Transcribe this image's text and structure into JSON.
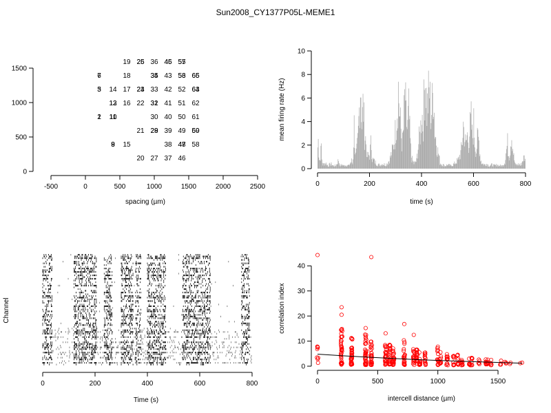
{
  "page": {
    "title": "Sun2008_CY1377P05L-MEME1"
  },
  "chart_data": [
    {
      "type": "scatter",
      "subtype": "electrode-layout",
      "xlabel": "spacing (µm)",
      "ylabel": "",
      "xlim": [
        -500,
        2500
      ],
      "ylim": [
        0,
        1500
      ],
      "xticks": [
        -500,
        0,
        500,
        1000,
        1500,
        2000,
        2500
      ],
      "yticks": [
        0,
        500,
        1000,
        1500
      ],
      "labels": [
        {
          "t": "19",
          "x": 600,
          "y": 1600
        },
        {
          "t": "25",
          "x": 800,
          "y": 1600
        },
        {
          "t": "26",
          "x": 800,
          "y": 1600
        },
        {
          "t": "36",
          "x": 1000,
          "y": 1600
        },
        {
          "t": "45",
          "x": 1200,
          "y": 1600
        },
        {
          "t": "46",
          "x": 1200,
          "y": 1600
        },
        {
          "t": "55",
          "x": 1400,
          "y": 1600
        },
        {
          "t": "57",
          "x": 1400,
          "y": 1600
        },
        {
          "t": "6",
          "x": 200,
          "y": 1400
        },
        {
          "t": "7",
          "x": 200,
          "y": 1400
        },
        {
          "t": "18",
          "x": 600,
          "y": 1400
        },
        {
          "t": "34",
          "x": 1000,
          "y": 1400
        },
        {
          "t": "35",
          "x": 1000,
          "y": 1400
        },
        {
          "t": "43",
          "x": 1200,
          "y": 1400
        },
        {
          "t": "53",
          "x": 1400,
          "y": 1400
        },
        {
          "t": "56",
          "x": 1400,
          "y": 1400
        },
        {
          "t": "65",
          "x": 1600,
          "y": 1400
        },
        {
          "t": "66",
          "x": 1600,
          "y": 1400
        },
        {
          "t": "3",
          "x": 200,
          "y": 1200
        },
        {
          "t": "5",
          "x": 200,
          "y": 1200
        },
        {
          "t": "14",
          "x": 400,
          "y": 1200
        },
        {
          "t": "17",
          "x": 600,
          "y": 1200
        },
        {
          "t": "23",
          "x": 800,
          "y": 1200
        },
        {
          "t": "24",
          "x": 800,
          "y": 1200
        },
        {
          "t": "33",
          "x": 1000,
          "y": 1200
        },
        {
          "t": "42",
          "x": 1200,
          "y": 1200
        },
        {
          "t": "52",
          "x": 1400,
          "y": 1200
        },
        {
          "t": "63",
          "x": 1600,
          "y": 1200
        },
        {
          "t": "64",
          "x": 1600,
          "y": 1200
        },
        {
          "t": "12",
          "x": 400,
          "y": 1000
        },
        {
          "t": "13",
          "x": 400,
          "y": 1000
        },
        {
          "t": "16",
          "x": 600,
          "y": 1000
        },
        {
          "t": "22",
          "x": 800,
          "y": 1000
        },
        {
          "t": "31",
          "x": 1000,
          "y": 1000
        },
        {
          "t": "32",
          "x": 1000,
          "y": 1000
        },
        {
          "t": "41",
          "x": 1200,
          "y": 1000
        },
        {
          "t": "51",
          "x": 1400,
          "y": 1000
        },
        {
          "t": "62",
          "x": 1600,
          "y": 1000
        },
        {
          "t": "1",
          "x": 200,
          "y": 800
        },
        {
          "t": "2",
          "x": 200,
          "y": 800
        },
        {
          "t": "10",
          "x": 400,
          "y": 800
        },
        {
          "t": "11",
          "x": 400,
          "y": 800
        },
        {
          "t": "30",
          "x": 1000,
          "y": 800
        },
        {
          "t": "40",
          "x": 1200,
          "y": 800
        },
        {
          "t": "50",
          "x": 1400,
          "y": 800
        },
        {
          "t": "61",
          "x": 1600,
          "y": 800
        },
        {
          "t": "21",
          "x": 800,
          "y": 600
        },
        {
          "t": "28",
          "x": 1000,
          "y": 600
        },
        {
          "t": "29",
          "x": 1000,
          "y": 600
        },
        {
          "t": "39",
          "x": 1200,
          "y": 600
        },
        {
          "t": "49",
          "x": 1400,
          "y": 600
        },
        {
          "t": "59",
          "x": 1600,
          "y": 600
        },
        {
          "t": "60",
          "x": 1600,
          "y": 600
        },
        {
          "t": "8",
          "x": 400,
          "y": 400
        },
        {
          "t": "9",
          "x": 400,
          "y": 400
        },
        {
          "t": "15",
          "x": 600,
          "y": 400
        },
        {
          "t": "38",
          "x": 1200,
          "y": 400
        },
        {
          "t": "47",
          "x": 1400,
          "y": 400
        },
        {
          "t": "48",
          "x": 1400,
          "y": 400
        },
        {
          "t": "58",
          "x": 1600,
          "y": 400
        },
        {
          "t": "20",
          "x": 800,
          "y": 200
        },
        {
          "t": "27",
          "x": 1000,
          "y": 200
        },
        {
          "t": "37",
          "x": 1200,
          "y": 200
        },
        {
          "t": "46",
          "x": 1400,
          "y": 200
        }
      ]
    },
    {
      "type": "bar",
      "subtype": "histogram",
      "xlabel": "time (s)",
      "ylabel": "mean firing rate (Hz)",
      "xlim": [
        0,
        800
      ],
      "ylim": [
        0,
        10
      ],
      "xticks": [
        0,
        200,
        400,
        600,
        800
      ],
      "yticks": [
        0,
        2,
        4,
        6,
        8,
        10
      ],
      "bin_width": 2,
      "envelope": [
        [
          0,
          2.2
        ],
        [
          2,
          2.9
        ],
        [
          5,
          1.2
        ],
        [
          10,
          0.8
        ],
        [
          12,
          3.8
        ],
        [
          15,
          1.0
        ],
        [
          20,
          0.4
        ],
        [
          30,
          0.6
        ],
        [
          40,
          0.3
        ],
        [
          50,
          0.5
        ],
        [
          60,
          0.3
        ],
        [
          70,
          0.3
        ],
        [
          80,
          0.9
        ],
        [
          85,
          0.3
        ],
        [
          95,
          0.4
        ],
        [
          100,
          0.3
        ],
        [
          110,
          0.4
        ],
        [
          120,
          0.3
        ],
        [
          130,
          0.8
        ],
        [
          135,
          0.4
        ],
        [
          140,
          4.5
        ],
        [
          145,
          1.2
        ],
        [
          150,
          1.8
        ],
        [
          155,
          3.0
        ],
        [
          160,
          6.0
        ],
        [
          165,
          9.4
        ],
        [
          170,
          4.5
        ],
        [
          175,
          6.8
        ],
        [
          180,
          3.5
        ],
        [
          185,
          3.0
        ],
        [
          190,
          1.2
        ],
        [
          200,
          1.4
        ],
        [
          205,
          2.8
        ],
        [
          210,
          1.0
        ],
        [
          220,
          0.7
        ],
        [
          230,
          0.4
        ],
        [
          240,
          0.4
        ],
        [
          250,
          0.5
        ],
        [
          260,
          0.4
        ],
        [
          270,
          0.6
        ],
        [
          280,
          1.2
        ],
        [
          290,
          2.2
        ],
        [
          295,
          3.0
        ],
        [
          300,
          4.2
        ],
        [
          305,
          5.8
        ],
        [
          310,
          8.2
        ],
        [
          315,
          5.5
        ],
        [
          320,
          4.0
        ],
        [
          325,
          2.4
        ],
        [
          330,
          4.0
        ],
        [
          335,
          7.8
        ],
        [
          340,
          5.2
        ],
        [
          345,
          3.8
        ],
        [
          350,
          6.0
        ],
        [
          355,
          3.2
        ],
        [
          360,
          1.2
        ],
        [
          370,
          0.5
        ],
        [
          380,
          0.8
        ],
        [
          385,
          2.0
        ],
        [
          390,
          3.0
        ],
        [
          395,
          3.8
        ],
        [
          400,
          6.2
        ],
        [
          405,
          4.2
        ],
        [
          410,
          8.0
        ],
        [
          415,
          9.5
        ],
        [
          420,
          5.8
        ],
        [
          425,
          7.2
        ],
        [
          430,
          8.0
        ],
        [
          435,
          5.2
        ],
        [
          440,
          6.5
        ],
        [
          445,
          8.6
        ],
        [
          450,
          4.0
        ],
        [
          455,
          3.0
        ],
        [
          460,
          2.0
        ],
        [
          465,
          1.5
        ],
        [
          470,
          0.6
        ],
        [
          480,
          0.4
        ],
        [
          490,
          0.3
        ],
        [
          500,
          0.4
        ],
        [
          510,
          0.3
        ],
        [
          520,
          0.4
        ],
        [
          530,
          0.6
        ],
        [
          540,
          0.9
        ],
        [
          550,
          1.6
        ],
        [
          555,
          2.4
        ],
        [
          560,
          4.6
        ],
        [
          565,
          3.2
        ],
        [
          570,
          2.4
        ],
        [
          575,
          3.6
        ],
        [
          580,
          2.6
        ],
        [
          585,
          4.0
        ],
        [
          590,
          5.0
        ],
        [
          595,
          3.0
        ],
        [
          600,
          4.6
        ],
        [
          605,
          2.4
        ],
        [
          610,
          1.8
        ],
        [
          615,
          3.2
        ],
        [
          620,
          2.8
        ],
        [
          625,
          1.2
        ],
        [
          630,
          0.6
        ],
        [
          640,
          0.4
        ],
        [
          650,
          0.5
        ],
        [
          660,
          0.3
        ],
        [
          670,
          0.4
        ],
        [
          680,
          0.3
        ],
        [
          690,
          0.4
        ],
        [
          700,
          0.3
        ],
        [
          710,
          0.3
        ],
        [
          720,
          0.7
        ],
        [
          725,
          1.8
        ],
        [
          730,
          2.6
        ],
        [
          735,
          1.2
        ],
        [
          740,
          2.0
        ],
        [
          745,
          3.8
        ],
        [
          750,
          2.2
        ],
        [
          755,
          1.0
        ],
        [
          760,
          0.4
        ],
        [
          770,
          0.4
        ],
        [
          775,
          0.5
        ],
        [
          780,
          0.3
        ],
        [
          785,
          0.6
        ],
        [
          790,
          1.0
        ],
        [
          795,
          1.2
        ],
        [
          800,
          0.6
        ]
      ]
    },
    {
      "type": "raster",
      "xlabel": "Time (s)",
      "ylabel": "Channel",
      "xlim": [
        0,
        800
      ],
      "xticks": [
        0,
        200,
        400,
        600,
        800
      ],
      "channels": 65,
      "bursts_s": [
        [
          0,
          35
        ],
        [
          120,
          205
        ],
        [
          235,
          265
        ],
        [
          300,
          345
        ],
        [
          355,
          375
        ],
        [
          400,
          470
        ],
        [
          535,
          640
        ],
        [
          760,
          790
        ]
      ]
    },
    {
      "type": "scatter",
      "xlabel": "intercell distance (µm)",
      "ylabel": "correlation index",
      "xlim": [
        0,
        1700
      ],
      "ylim": [
        0,
        45
      ],
      "xticks": [
        0,
        500,
        1000,
        1500
      ],
      "yticks": [
        0,
        10,
        20,
        30,
        40
      ],
      "point_color": "#ff0000",
      "fit_color": "#000000",
      "columns": [
        {
          "x": 0,
          "ymin": 0.5,
          "ymax": 11.0,
          "n": 8
        },
        {
          "x": 200,
          "ymin": 0.6,
          "ymax": 15.8,
          "n": 40
        },
        {
          "x": 283,
          "ymin": 0.6,
          "ymax": 12.5,
          "n": 36
        },
        {
          "x": 400,
          "ymin": 0.5,
          "ymax": 13.0,
          "n": 34
        },
        {
          "x": 447,
          "ymin": 0.5,
          "ymax": 10.2,
          "n": 32
        },
        {
          "x": 566,
          "ymin": 0.5,
          "ymax": 9.5,
          "n": 26
        },
        {
          "x": 600,
          "ymin": 0.5,
          "ymax": 10.5,
          "n": 24
        },
        {
          "x": 632,
          "ymin": 0.5,
          "ymax": 8.5,
          "n": 22
        },
        {
          "x": 721,
          "ymin": 0.5,
          "ymax": 12.3,
          "n": 22
        },
        {
          "x": 800,
          "ymin": 0.5,
          "ymax": 7.2,
          "n": 18
        },
        {
          "x": 825,
          "ymin": 0.5,
          "ymax": 7.2,
          "n": 18
        },
        {
          "x": 849,
          "ymin": 0.5,
          "ymax": 6.8,
          "n": 14
        },
        {
          "x": 894,
          "ymin": 0.5,
          "ymax": 6.2,
          "n": 14
        },
        {
          "x": 1000,
          "ymin": 0.4,
          "ymax": 7.7,
          "n": 14
        },
        {
          "x": 1020,
          "ymin": 0.4,
          "ymax": 6.2,
          "n": 12
        },
        {
          "x": 1077,
          "ymin": 0.4,
          "ymax": 5.3,
          "n": 12
        },
        {
          "x": 1131,
          "ymin": 0.4,
          "ymax": 4.8,
          "n": 10
        },
        {
          "x": 1166,
          "ymin": 0.4,
          "ymax": 4.6,
          "n": 10
        },
        {
          "x": 1200,
          "ymin": 0.4,
          "ymax": 4.4,
          "n": 10
        },
        {
          "x": 1265,
          "ymin": 0.4,
          "ymax": 4.2,
          "n": 8
        },
        {
          "x": 1281,
          "ymin": 0.4,
          "ymax": 3.8,
          "n": 8
        },
        {
          "x": 1342,
          "ymin": 0.4,
          "ymax": 3.3,
          "n": 6
        },
        {
          "x": 1400,
          "ymin": 0.4,
          "ymax": 3.2,
          "n": 6
        },
        {
          "x": 1414,
          "ymin": 0.4,
          "ymax": 2.9,
          "n": 6
        },
        {
          "x": 1442,
          "ymin": 0.4,
          "ymax": 2.6,
          "n": 5
        },
        {
          "x": 1523,
          "ymin": 0.5,
          "ymax": 2.5,
          "n": 4
        },
        {
          "x": 1562,
          "ymin": 0.5,
          "ymax": 2.4,
          "n": 3
        },
        {
          "x": 1600,
          "ymin": 0.8,
          "ymax": 2.0,
          "n": 2
        }
      ],
      "outliers": [
        [
          0,
          44.3
        ],
        [
          447,
          43.5
        ],
        [
          200,
          23.5
        ],
        [
          200,
          20.5
        ],
        [
          721,
          16.8
        ],
        [
          800,
          12.5
        ],
        [
          400,
          15.2
        ],
        [
          566,
          13.1
        ],
        [
          1000,
          7.8
        ],
        [
          1685,
          1.2
        ],
        [
          1700,
          1.4
        ]
      ],
      "fit": [
        [
          0,
          4.8
        ],
        [
          200,
          4.2
        ],
        [
          400,
          3.65
        ],
        [
          600,
          3.15
        ],
        [
          800,
          2.7
        ],
        [
          1000,
          2.3
        ],
        [
          1200,
          1.95
        ],
        [
          1400,
          1.65
        ],
        [
          1600,
          1.35
        ],
        [
          1700,
          1.2
        ]
      ]
    }
  ]
}
